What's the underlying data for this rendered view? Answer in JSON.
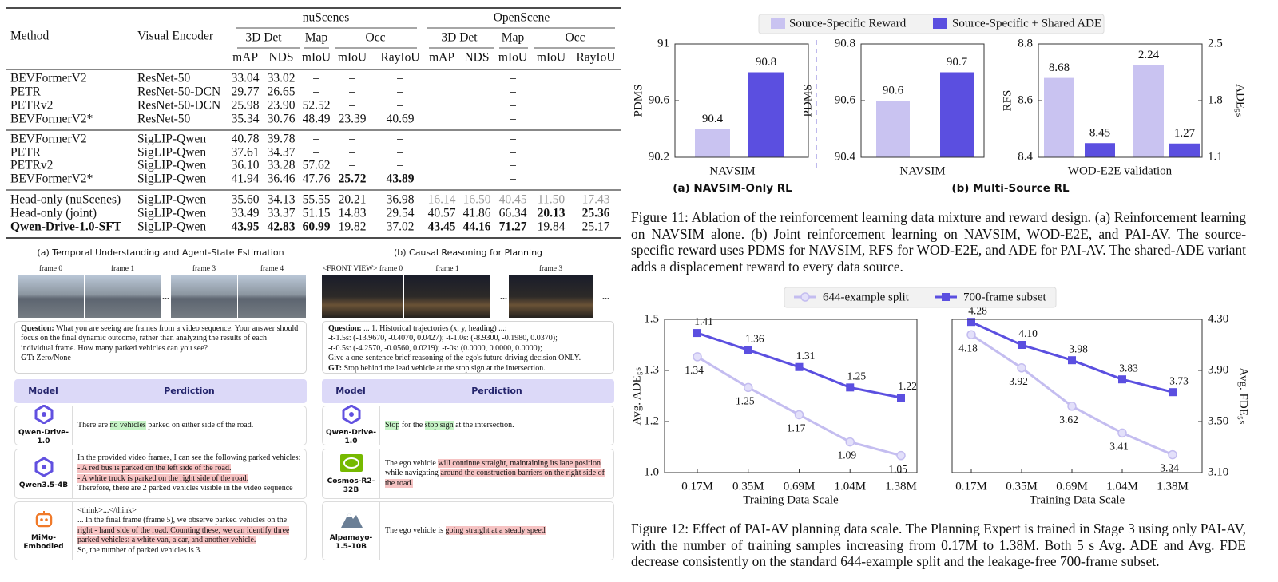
{
  "table": {
    "columns": [
      "Method",
      "Visual Encoder"
    ],
    "datasets": [
      "nuScenes",
      "OpenScene"
    ],
    "tasks": [
      "3D Det",
      "Map",
      "Occ",
      "3D Det",
      "Map",
      "Occ"
    ],
    "metrics": [
      "mAP",
      "NDS",
      "mIoU",
      "mIoU",
      "RayIoU",
      "mAP",
      "NDS",
      "mIoU",
      "mIoU",
      "RayIoU"
    ],
    "groups": [
      [
        [
          "BEVFormerV2",
          "ResNet-50",
          "33.04",
          "33.02",
          "–",
          "–",
          "–",
          null,
          null,
          "–",
          null,
          null
        ],
        [
          "PETR",
          "ResNet-50-DCN",
          "29.77",
          "26.65",
          "–",
          "–",
          "–",
          null,
          null,
          "–",
          null,
          null
        ],
        [
          "PETRv2",
          "ResNet-50-DCN",
          "25.98",
          "23.90",
          "52.52",
          "–",
          "–",
          null,
          null,
          "–",
          null,
          null
        ],
        [
          "BEVFormerV2*",
          "ResNet-50",
          "35.34",
          "30.76",
          "48.49",
          "23.39",
          "40.69",
          null,
          null,
          "–",
          null,
          null
        ]
      ],
      [
        [
          "BEVFormerV2",
          "SigLIP-Qwen",
          "40.78",
          "39.78",
          "–",
          "–",
          "–",
          null,
          null,
          "–",
          null,
          null
        ],
        [
          "PETR",
          "SigLIP-Qwen",
          "37.61",
          "34.37",
          "–",
          "–",
          "–",
          null,
          null,
          "–",
          null,
          null
        ],
        [
          "PETRv2",
          "SigLIP-Qwen",
          "36.10",
          "33.28",
          "57.62",
          "–",
          "–",
          null,
          null,
          "–",
          null,
          null
        ],
        [
          "BEVFormerV2*",
          "SigLIP-Qwen",
          "41.94",
          "36.46",
          "47.76",
          "25.72",
          "43.89",
          null,
          null,
          "–",
          null,
          null
        ]
      ],
      [
        [
          "Head-only (nuScenes)",
          "SigLIP-Qwen",
          "35.60",
          "34.13",
          "55.55",
          "20.21",
          "36.98",
          "16.14",
          "16.50",
          "40.45",
          "11.50",
          "17.43"
        ],
        [
          "Head-only (joint)",
          "SigLIP-Qwen",
          "33.49",
          "33.37",
          "51.15",
          "14.83",
          "29.54",
          "40.57",
          "41.86",
          "66.34",
          "20.13",
          "25.36"
        ],
        [
          "Qwen-Drive-1.0-SFT",
          "SigLIP-Qwen",
          "43.95",
          "42.83",
          "60.99",
          "19.82",
          "37.02",
          "43.45",
          "44.16",
          "71.27",
          "19.84",
          "25.17"
        ]
      ]
    ],
    "bold": [
      [
        1,
        3,
        5
      ],
      [
        1,
        3,
        6
      ],
      [
        2,
        1,
        10
      ],
      [
        2,
        1,
        11
      ],
      [
        2,
        2,
        0
      ],
      [
        2,
        2,
        2
      ],
      [
        2,
        2,
        3
      ],
      [
        2,
        2,
        4
      ],
      [
        2,
        2,
        7
      ],
      [
        2,
        2,
        8
      ],
      [
        2,
        2,
        9
      ]
    ],
    "gray": [
      [
        2,
        0,
        7
      ],
      [
        2,
        0,
        8
      ],
      [
        2,
        0,
        9
      ],
      [
        2,
        0,
        10
      ],
      [
        2,
        0,
        11
      ]
    ]
  },
  "qualitative": {
    "panels": [
      {
        "title": "(a) Temporal Understanding and Agent-State Estimation",
        "frames": [
          "frame 0",
          "frame 1",
          "frame 3",
          "frame 4"
        ],
        "ellipsis": "...",
        "question_label": "Question:",
        "question": "What you are seeing are frames from a video sequence. Your answer should focus on the final dynamic outcome, rather than analyzing the results of each individual frame. How many parked vehicles can you see?",
        "gt_label": "GT:",
        "gt": "Zero/None",
        "header": [
          "Model",
          "Perdiction"
        ],
        "rows": [
          {
            "model": "Qwen-Drive-1.0",
            "segments": [
              {
                "text": "There are "
              },
              {
                "text": "no vehicles",
                "highlight": "green"
              },
              {
                "text": " parked on either side of the road."
              }
            ]
          },
          {
            "model": "Qwen3.5-4B",
            "segments": [
              {
                "text": "In the provided video frames, I can see the following parked vehicles:\n"
              },
              {
                "text": "- A red bus is parked on the left side of the road.",
                "highlight": "red"
              },
              {
                "text": "\n"
              },
              {
                "text": "- A white truck is parked on the right side of the road.",
                "highlight": "red"
              },
              {
                "text": "\nTherefore, there are 2 parked vehicles visible in the video sequence"
              }
            ]
          },
          {
            "model": "MiMo-Embodied",
            "segments": [
              {
                "text": "<think>...</think>\n... In the final frame (frame 5), we observe parked vehicles on the "
              },
              {
                "text": "right - hand side of the road. Counting these, we can identify three parked vehicles: a white van, a car, and another vehicle.",
                "highlight": "red"
              },
              {
                "text": "\nSo, the number of parked vehicles is 3."
              }
            ]
          }
        ]
      },
      {
        "title": "(b) Causal Reasoning for Planning",
        "frames": [
          "<FRONT VIEW> frame 0",
          "frame 1",
          "frame 3"
        ],
        "ellipsis": "...",
        "question_label": "Question:",
        "question": "... 1. Historical trajectories (x, y, heading) ...:\n -t-1.5s: (-13.9670, -0.4070, 0.0427); -t-1.0s: (-8.9300, -0.1980, 0.0370);\n -t-0.5s: (-4.2570, -0.0560, 0.0219); -t-0s: (0.0000, 0.0000, 0.0000);\nGive a one-sentence brief reasoning of the ego's future driving decision ONLY.",
        "gt_label": "GT:",
        "gt": "Stop behind the lead vehicle at the stop sign at the intersection.",
        "header": [
          "Model",
          "Perdiction"
        ],
        "rows": [
          {
            "model": "Qwen-Drive-1.0",
            "segments": [
              {
                "text": "Stop",
                "highlight": "green"
              },
              {
                "text": " for the "
              },
              {
                "text": "stop sign",
                "highlight": "green"
              },
              {
                "text": " at the intersection."
              }
            ]
          },
          {
            "model": "Cosmos-R2-32B",
            "segments": [
              {
                "text": "The ego vehicle "
              },
              {
                "text": "will continue straight, maintaining its lane position",
                "highlight": "red"
              },
              {
                "text": " while navigating "
              },
              {
                "text": "around the construction barriers on the right side of the road.",
                "highlight": "red"
              }
            ]
          },
          {
            "model": "Alpamayo-1.5-10B",
            "segments": [
              {
                "text": "The ego vehicle is "
              },
              {
                "text": "going straight at a steady speed",
                "highlight": "red"
              }
            ]
          }
        ]
      }
    ]
  },
  "chart_data": [
    {
      "type": "bar",
      "categories": [
        "NAVSIM"
      ],
      "series": [
        {
          "name": "Source-Specific Reward",
          "color": "#c9c3f1",
          "values": [
            90.4
          ]
        },
        {
          "name": "Source-Specific + Shared ADE",
          "color": "#5b4fe0",
          "values": [
            90.8
          ]
        }
      ],
      "ylabel": "PDMS",
      "ylim": [
        90.2,
        91
      ],
      "yticks": [
        90.2,
        90.6,
        91
      ],
      "caption": "(a) NAVSIM-Only RL",
      "legend": "top"
    },
    {
      "type": "bar",
      "categories": [
        "NAVSIM"
      ],
      "series": [
        {
          "color": "#c9c3f1",
          "values": [
            90.6
          ]
        },
        {
          "color": "#5b4fe0",
          "values": [
            90.7
          ]
        }
      ],
      "ylabel": "PDMS",
      "ylim": [
        90.4,
        90.8
      ],
      "yticks": [
        90.4,
        90.6,
        90.8
      ],
      "caption": "(b) Multi-Source RL"
    },
    {
      "type": "bar",
      "categories": [
        "WOD-E2E validation"
      ],
      "series": [
        {
          "color": "#c9c3f1",
          "values": [
            8.68
          ]
        },
        {
          "color": "#5b4fe0",
          "values": [
            8.45
          ]
        },
        {
          "color": "#c9c3f1",
          "axis": "y2",
          "values": [
            2.24
          ]
        },
        {
          "color": "#5b4fe0",
          "axis": "y2",
          "values": [
            1.27
          ]
        }
      ],
      "ylabel": "RFS",
      "y2label": "ADE₅ₛ",
      "ylim": [
        8.4,
        8.8
      ],
      "yticks": [
        8.4,
        8.6,
        8.8
      ],
      "y2lim": [
        1.1,
        2.5
      ],
      "y2ticks": [
        1.1,
        1.8,
        2.5
      ]
    },
    {
      "type": "line",
      "categories": [
        "0.17M",
        "0.35M",
        "0.69M",
        "1.04M",
        "1.38M"
      ],
      "series": [
        {
          "name": "644-example split",
          "color": "#c4bdf0",
          "marker": "circle",
          "values": [
            1.34,
            1.25,
            1.17,
            1.09,
            1.05
          ]
        },
        {
          "name": "700-frame subset",
          "color": "#5b4fe0",
          "marker": "square",
          "values": [
            1.41,
            1.36,
            1.31,
            1.25,
            1.22
          ]
        }
      ],
      "xlabel": "Training Data Scale",
      "ylabel": "Avg. ADE₅ₛ",
      "ylim": [
        1.0,
        1.45
      ],
      "yticks": [
        {
          "value": 1.0,
          "label": "1.0"
        },
        {
          "value": 1.15,
          "label": "1.2"
        },
        {
          "value": 1.3,
          "label": "1.3"
        },
        {
          "value": 1.45,
          "label": "1.5"
        }
      ],
      "legend": "top"
    },
    {
      "type": "line",
      "categories": [
        "0.17M",
        "0.35M",
        "0.69M",
        "1.04M",
        "1.38M"
      ],
      "series": [
        {
          "color": "#c4bdf0",
          "marker": "circle",
          "values": [
            4.18,
            3.92,
            3.62,
            3.41,
            3.24
          ]
        },
        {
          "color": "#5b4fe0",
          "marker": "square",
          "values": [
            4.28,
            4.1,
            3.98,
            3.83,
            3.73
          ],
          "value_labels": [
            "4.28",
            "4.10",
            "3.98",
            "3.83",
            "3.73"
          ]
        }
      ],
      "xlabel": "Training Data Scale",
      "ylabel": "Avg. FDE₅ₛ",
      "ylim": [
        3.1,
        4.3
      ],
      "yticks": [
        {
          "value": 3.1,
          "label": "3.10"
        },
        {
          "value": 3.5,
          "label": "3.50"
        },
        {
          "value": 3.9,
          "label": "3.90"
        },
        {
          "value": 4.3,
          "label": "4.30"
        }
      ],
      "y_axis": "right"
    }
  ],
  "figure_11_caption": "Figure 11: Ablation of the reinforcement learning data mixture and reward design. (a) Reinforcement learning on NAVSIM alone. (b) Joint reinforcement learning on NAVSIM, WOD-E2E, and PAI-AV. The source-specific reward uses PDMS for NAVSIM, RFS for WOD-E2E, and ADE for PAI-AV. The shared-ADE variant adds a displacement reward to every data source.",
  "figure_12_caption": "Figure 12: Effect of PAI-AV planning data scale. The Planning Expert is trained in Stage 3 using only PAI-AV, with the number of training samples increasing from 0.17M to 1.38M. Both 5 s Avg. ADE and Avg. FDE decrease consistently on the standard 644-example split and the leakage-free 700-frame subset."
}
